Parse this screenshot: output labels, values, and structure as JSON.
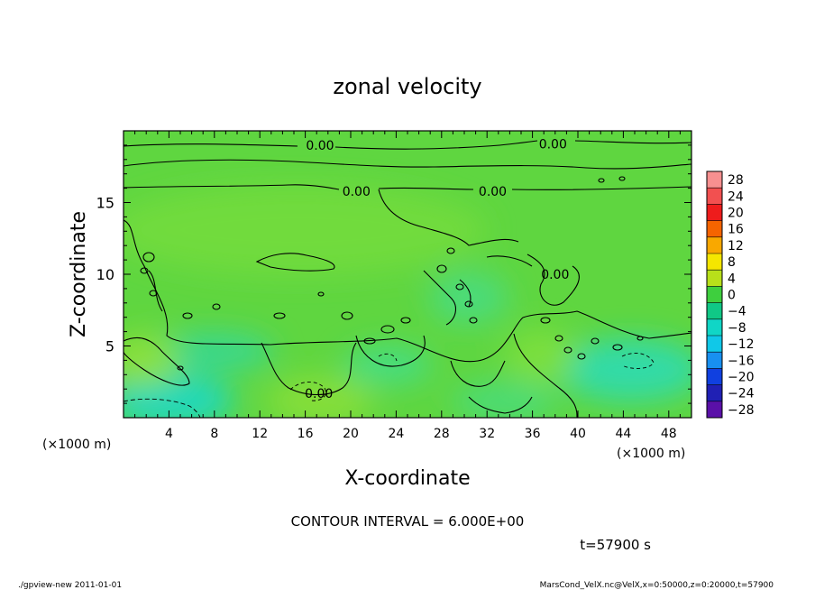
{
  "chart_data": {
    "type": "heatmap",
    "title": "zonal velocity",
    "xlabel": "X-coordinate",
    "ylabel": "Z-coordinate",
    "x_unit": "(×1000 m)",
    "y_unit": "(×1000 m)",
    "xlim": [
      0,
      50
    ],
    "ylim": [
      0,
      20
    ],
    "x_ticks": [
      4,
      8,
      12,
      16,
      20,
      24,
      28,
      32,
      36,
      40,
      44,
      48
    ],
    "y_ticks": [
      5,
      10,
      15
    ],
    "contour_labels": [
      {
        "text": "0.00",
        "x": 17.3,
        "z": 19.0
      },
      {
        "text": "0.00",
        "x": 37.8,
        "z": 19.1
      },
      {
        "text": "0.00",
        "x": 20.5,
        "z": 15.8
      },
      {
        "text": "0.00",
        "x": 32.5,
        "z": 15.8
      },
      {
        "text": "0.00",
        "x": 38.0,
        "z": 10.0
      },
      {
        "text": "0.00",
        "x": 17.2,
        "z": 1.7
      }
    ],
    "colorbar": {
      "levels": [
        28,
        24,
        20,
        16,
        12,
        8,
        4,
        0,
        -4,
        -8,
        -12,
        -16,
        -20,
        -24,
        -28
      ],
      "labels": [
        "28",
        "24",
        "20",
        "16",
        "12",
        "8",
        "4",
        "0",
        "−4",
        "−8",
        "−12",
        "−16",
        "−20",
        "−24",
        "−28"
      ],
      "colors": [
        "#f79090",
        "#f25050",
        "#ee1c1c",
        "#f56400",
        "#f9a800",
        "#f5e600",
        "#b8e01a",
        "#3ecf3e",
        "#10c886",
        "#10d6c6",
        "#10c8e8",
        "#1890f0",
        "#1040e0",
        "#2020b4",
        "#5a10a8"
      ]
    },
    "field_colors": {
      "base": "#5fd640",
      "light": "#84e23c",
      "cyan": "#33e6b4",
      "teal": "#20d8cc"
    },
    "contour_interval_text": "CONTOUR INTERVAL = 6.000E+00",
    "time_text": "t=57900 s"
  },
  "footer": {
    "left": "./gpview-new   2011-01-01",
    "right": "MarsCond_VelX.nc@VelX,x=0:50000,z=0:20000,t=57900"
  }
}
